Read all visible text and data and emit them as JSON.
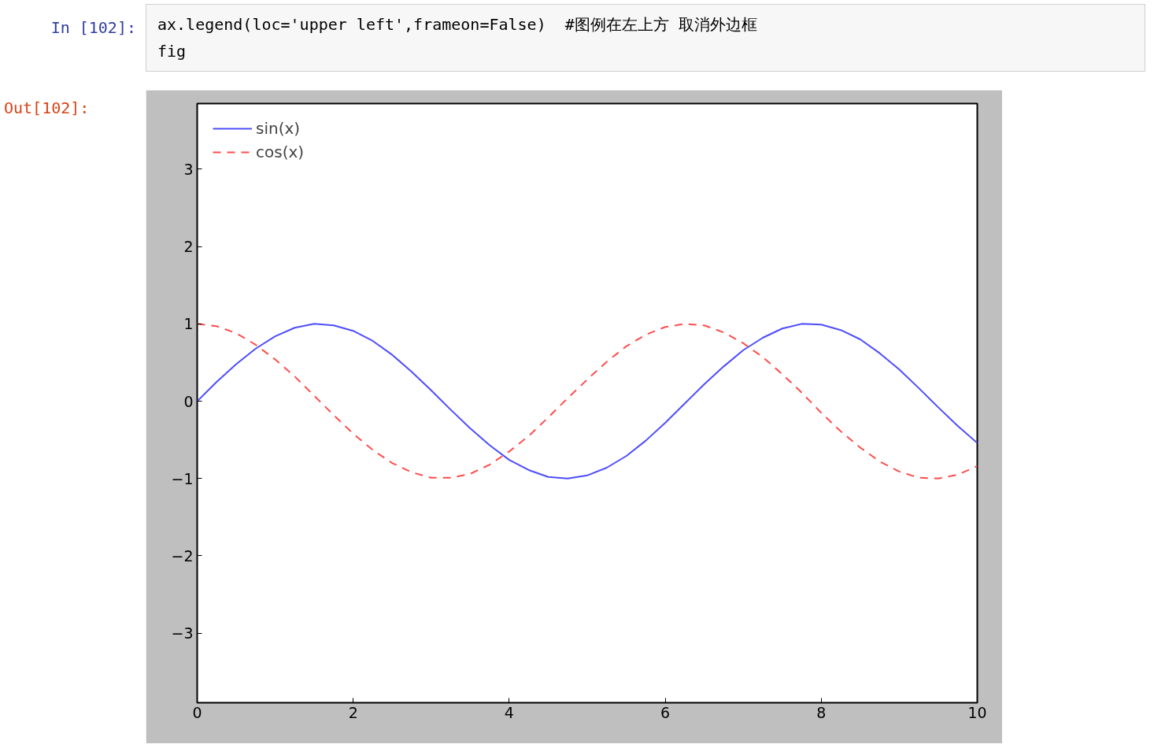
{
  "chart_data": {
    "type": "line",
    "annotations": [
      "In [102]:",
      "ax.legend(loc='upper left',frameon=False)  #图例在左上方 取消外边框",
      "fig",
      "Out[102]:"
    ],
    "x": [
      0,
      0.25,
      0.5,
      0.75,
      1,
      1.25,
      1.5,
      1.75,
      2,
      2.25,
      2.5,
      2.75,
      3,
      3.25,
      3.5,
      3.75,
      4,
      4.25,
      4.5,
      4.75,
      5,
      5.25,
      5.5,
      5.75,
      6,
      6.25,
      6.5,
      6.75,
      7,
      7.25,
      7.5,
      7.75,
      8,
      8.25,
      8.5,
      8.75,
      9,
      9.25,
      9.5,
      9.75,
      10
    ],
    "series": [
      {
        "name": "sin(x)",
        "color": "#4d4dff",
        "line_style": "solid",
        "values": [
          0,
          0.25,
          0.48,
          0.68,
          0.84,
          0.95,
          1.0,
          0.98,
          0.91,
          0.78,
          0.6,
          0.38,
          0.14,
          -0.11,
          -0.35,
          -0.57,
          -0.76,
          -0.89,
          -0.98,
          -1.0,
          -0.96,
          -0.86,
          -0.71,
          -0.51,
          -0.28,
          -0.03,
          0.22,
          0.45,
          0.66,
          0.82,
          0.94,
          1.0,
          0.99,
          0.92,
          0.8,
          0.62,
          0.41,
          0.17,
          -0.08,
          -0.32,
          -0.54
        ]
      },
      {
        "name": "cos(x)",
        "color": "#ff4d4d",
        "line_style": "dashed",
        "values": [
          1,
          0.97,
          0.88,
          0.73,
          0.54,
          0.32,
          0.07,
          -0.18,
          -0.42,
          -0.63,
          -0.8,
          -0.92,
          -0.99,
          -0.99,
          -0.94,
          -0.82,
          -0.65,
          -0.45,
          -0.21,
          0.04,
          0.28,
          0.51,
          0.71,
          0.86,
          0.96,
          1.0,
          0.98,
          0.89,
          0.75,
          0.57,
          0.35,
          0.11,
          -0.15,
          -0.39,
          -0.6,
          -0.78,
          -0.91,
          -0.99,
          -1.0,
          -0.95,
          -0.84
        ]
      }
    ],
    "xlim": [
      0,
      10
    ],
    "xticks": [
      0,
      2,
      4,
      6,
      8,
      10
    ],
    "ylim": [
      -3.9,
      3.85
    ],
    "yticks": [
      {
        "value": -3,
        "label": "−3"
      },
      {
        "value": -2,
        "label": "−2"
      },
      {
        "value": -1,
        "label": "−1"
      },
      0,
      1,
      2,
      3
    ],
    "legend": "top left",
    "grid": false,
    "marker": "none"
  }
}
